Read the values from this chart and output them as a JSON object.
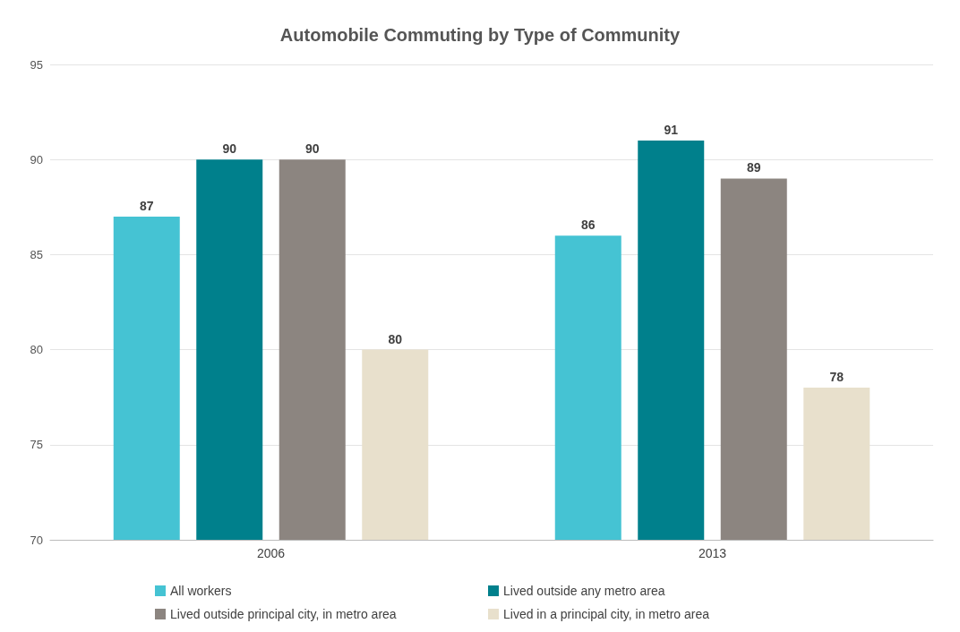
{
  "chart_data": {
    "type": "bar",
    "title": "Automobile Commuting by Type of Community",
    "categories": [
      "2006",
      "2013"
    ],
    "series": [
      {
        "name": "All workers",
        "color": "#45c3d3",
        "values": [
          87,
          86
        ]
      },
      {
        "name": "Lived outside any metro area",
        "color": "#00808c",
        "values": [
          90,
          91
        ]
      },
      {
        "name": "Lived outside principal city, in metro area",
        "color": "#8c8580",
        "values": [
          90,
          89
        ]
      },
      {
        "name": "Lived in a principal city, in metro area",
        "color": "#e8e0cc",
        "values": [
          80,
          78
        ]
      }
    ],
    "ylim": [
      70,
      95
    ],
    "yticks": [
      70,
      75,
      80,
      85,
      90,
      95
    ],
    "grid": "y",
    "legend": "bottom",
    "data_labels": true
  }
}
